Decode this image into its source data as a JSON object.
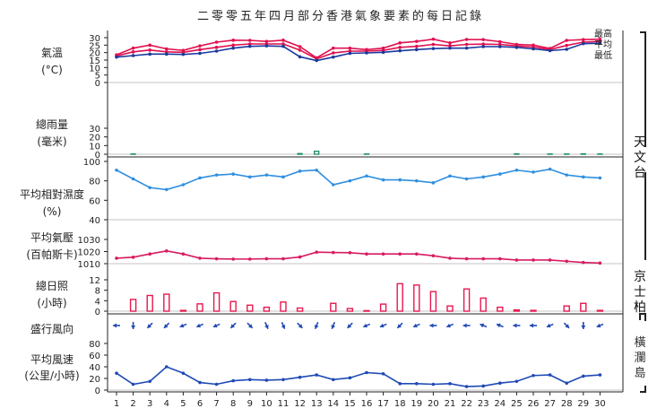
{
  "title": "二零零五年四月部分香港氣象要素的每日記錄",
  "stations": {
    "observatory": "天文台",
    "kings_park": "京士柏",
    "waglan": "橫瀾島"
  },
  "colors": {
    "max": "#e0104f",
    "mean": "#e0104f",
    "min": "#1a3a9c",
    "humidity": "#2f8fe0",
    "pressure": "#d81b60",
    "sunshine": "#e8174f",
    "wind": "#1f49b5",
    "rain": "#1a8a6a",
    "axis": "#222222",
    "grid": "#888888"
  },
  "chart_data": [
    {
      "type": "line",
      "title": "氣溫",
      "ylabel": "氣溫 (°C)",
      "ylim": [
        0,
        30
      ],
      "yticks": [
        "0",
        "5",
        "10",
        "15",
        "20",
        "25",
        "30"
      ],
      "x": [
        1,
        2,
        3,
        4,
        5,
        6,
        7,
        8,
        9,
        10,
        11,
        12,
        13,
        14,
        15,
        16,
        17,
        18,
        19,
        20,
        21,
        22,
        23,
        24,
        25,
        26,
        27,
        28,
        29,
        30
      ],
      "series": [
        {
          "name": "最高",
          "values": [
            18.5,
            23,
            25,
            22.5,
            21.5,
            24.5,
            27,
            28.3,
            28.2,
            27.5,
            28.3,
            24,
            16.5,
            23,
            23,
            22,
            23,
            26.5,
            27.5,
            29,
            26.5,
            28.8,
            28.7,
            27.3,
            25.5,
            25,
            22.8,
            28.2,
            28.7,
            29
          ]
        },
        {
          "name": "平均",
          "values": [
            17.8,
            20.5,
            21.7,
            20.5,
            20.2,
            22,
            23.5,
            25,
            25.8,
            25.8,
            25.8,
            21.7,
            15.8,
            19.8,
            21,
            21,
            21.5,
            23.5,
            24.2,
            25.5,
            24.5,
            25.5,
            25.7,
            25.5,
            24.5,
            23.7,
            22,
            24.8,
            27,
            27.5
          ]
        },
        {
          "name": "最低",
          "values": [
            17,
            18,
            19,
            19,
            18.8,
            19.5,
            21,
            23,
            24.2,
            24.5,
            24.2,
            17.2,
            14.7,
            17,
            19.5,
            19.8,
            20.2,
            21.2,
            22,
            22.7,
            23,
            23,
            24,
            24,
            23.5,
            22.5,
            21.3,
            22.2,
            26,
            26.3
          ]
        }
      ]
    },
    {
      "type": "bar",
      "title": "總雨量",
      "ylabel": "總雨量 (毫米)",
      "ylim": [
        0,
        30
      ],
      "yticks": [
        "0",
        "10",
        "20",
        "30"
      ],
      "x": [
        1,
        2,
        3,
        4,
        5,
        6,
        7,
        8,
        9,
        10,
        11,
        12,
        13,
        14,
        15,
        16,
        17,
        18,
        19,
        20,
        21,
        22,
        23,
        24,
        25,
        26,
        27,
        28,
        29,
        30
      ],
      "values": [
        0,
        0.3,
        0,
        0,
        0,
        0,
        0,
        0,
        0,
        0,
        0,
        0.8,
        3.5,
        0,
        0,
        0.3,
        0,
        0,
        0,
        0,
        0,
        0,
        0,
        0,
        0.5,
        0,
        0.3,
        0.3,
        0.5,
        0.3
      ]
    },
    {
      "type": "line",
      "title": "平均相對濕度",
      "ylabel": "平均相對濕度 (%)",
      "ylim": [
        40,
        100
      ],
      "yticks": [
        "40",
        "60",
        "80",
        "100"
      ],
      "x": [
        1,
        2,
        3,
        4,
        5,
        6,
        7,
        8,
        9,
        10,
        11,
        12,
        13,
        14,
        15,
        16,
        17,
        18,
        19,
        20,
        21,
        22,
        23,
        24,
        25,
        26,
        27,
        28,
        29,
        30
      ],
      "series": [
        {
          "name": "平均相對濕度",
          "values": [
            91,
            82,
            73,
            71,
            76,
            83,
            86,
            87,
            84,
            86,
            84,
            90,
            91,
            76,
            80,
            85,
            81,
            81,
            80,
            78,
            85,
            82,
            84,
            87,
            91,
            89,
            92,
            86,
            84,
            83
          ]
        }
      ]
    },
    {
      "type": "line",
      "title": "平均氣壓",
      "ylabel": "平均氣壓 (百帕斯卡)",
      "ylim": [
        1010,
        1030
      ],
      "yticks": [
        "1010",
        "1020",
        "1030"
      ],
      "x": [
        1,
        2,
        3,
        4,
        5,
        6,
        7,
        8,
        9,
        10,
        11,
        12,
        13,
        14,
        15,
        16,
        17,
        18,
        19,
        20,
        21,
        22,
        23,
        24,
        25,
        26,
        27,
        28,
        29,
        30
      ],
      "series": [
        {
          "name": "平均氣壓",
          "values": [
            1014.5,
            1015.3,
            1018,
            1020.5,
            1018,
            1014.5,
            1014,
            1013.8,
            1013.8,
            1014,
            1014,
            1015.5,
            1019.5,
            1019.2,
            1019,
            1018,
            1018,
            1018,
            1018,
            1016.5,
            1014.5,
            1014,
            1014,
            1014,
            1013,
            1013,
            1013,
            1012,
            1011,
            1010.5
          ]
        }
      ]
    },
    {
      "type": "bar",
      "title": "總日照",
      "ylabel": "總日照 (小時)",
      "ylim": [
        0,
        12
      ],
      "yticks": [
        "0",
        "4",
        "8",
        "12"
      ],
      "x": [
        1,
        2,
        3,
        4,
        5,
        6,
        7,
        8,
        9,
        10,
        11,
        12,
        13,
        14,
        15,
        16,
        17,
        18,
        19,
        20,
        21,
        22,
        23,
        24,
        25,
        26,
        27,
        28,
        29,
        30
      ],
      "values": [
        0,
        4.5,
        6,
        6.5,
        0.3,
        2.8,
        7,
        3.7,
        2.3,
        1.5,
        3.5,
        1.2,
        0,
        3,
        1,
        0.2,
        2.7,
        10.5,
        10,
        7.5,
        2,
        8.5,
        5,
        1.5,
        0.5,
        0.3,
        0,
        2,
        3,
        0.3
      ]
    },
    {
      "type": "line",
      "title": "盛行風向 / 平均風速",
      "ylabel": "平均風速 (公里/小時)",
      "ylim": [
        0,
        80
      ],
      "yticks": [
        "0",
        "20",
        "40",
        "60",
        "80"
      ],
      "x": [
        1,
        2,
        3,
        4,
        5,
        6,
        7,
        8,
        9,
        10,
        11,
        12,
        13,
        14,
        15,
        16,
        17,
        18,
        19,
        20,
        21,
        22,
        23,
        24,
        25,
        26,
        27,
        28,
        29,
        30
      ],
      "wind_direction_from_deg": [
        90,
        0,
        45,
        45,
        67,
        67,
        67,
        45,
        315,
        337,
        337,
        315,
        22,
        22,
        45,
        67,
        67,
        45,
        67,
        90,
        67,
        90,
        112,
        112,
        90,
        90,
        67,
        315,
        0,
        67
      ],
      "series": [
        {
          "name": "平均風速",
          "values": [
            29,
            10,
            15,
            40,
            29,
            13,
            10,
            16,
            18,
            17,
            18,
            22,
            26,
            18,
            21,
            30,
            28,
            11,
            11,
            10,
            11,
            6,
            7,
            12,
            15,
            25,
            26,
            12,
            24,
            26
          ]
        }
      ]
    }
  ]
}
